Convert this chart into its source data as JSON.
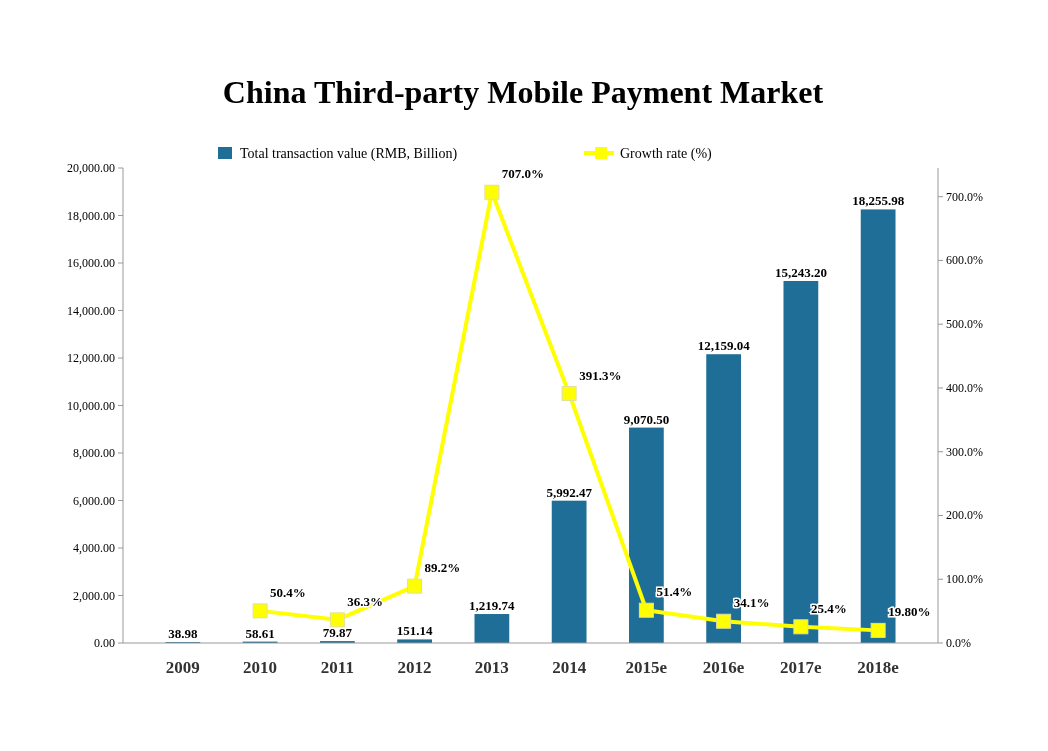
{
  "chart_data": {
    "type": "bar",
    "title": "China Third-party Mobile Payment Market",
    "categories": [
      "2009",
      "2010",
      "2011",
      "2012",
      "2013",
      "2014",
      "2015e",
      "2016e",
      "2017e",
      "2018e"
    ],
    "series": [
      {
        "name": "Total transaction value (RMB, Billion)",
        "color": "#1f6e97",
        "values": [
          38.98,
          58.61,
          79.87,
          151.14,
          1219.74,
          5992.47,
          9070.5,
          12159.04,
          15243.2,
          18255.98
        ],
        "value_labels": [
          "38.98",
          "58.61",
          "79.87",
          "151.14",
          "1,219.74",
          "5,992.47",
          "9,070.50",
          "12,159.04",
          "15,243.20",
          "18,255.98"
        ]
      },
      {
        "name": "Growth rate (%)",
        "type": "line",
        "axis": "y2",
        "color": "#ffff00",
        "marker": "square",
        "values": [
          null,
          50.4,
          36.3,
          89.2,
          707.0,
          391.3,
          51.4,
          34.1,
          25.4,
          19.8
        ],
        "value_labels": [
          null,
          "50.4%",
          "36.3%",
          "89.2%",
          "707.0%",
          "391.3%",
          "51.4%",
          "34.1%",
          "25.4%",
          "19.80%"
        ]
      }
    ],
    "ylim": [
      0,
      20000
    ],
    "yticks": [
      {
        "value": 0,
        "label": "0.00"
      },
      {
        "value": 2000,
        "label": "2,000.00"
      },
      {
        "value": 4000,
        "label": "4,000.00"
      },
      {
        "value": 6000,
        "label": "6,000.00"
      },
      {
        "value": 8000,
        "label": "8,000.00"
      },
      {
        "value": 10000,
        "label": "10,000.00"
      },
      {
        "value": 12000,
        "label": "12,000.00"
      },
      {
        "value": 14000,
        "label": "14,000.00"
      },
      {
        "value": 16000,
        "label": "16,000.00"
      },
      {
        "value": 18000,
        "label": "18,000.00"
      },
      {
        "value": 20000,
        "label": "20,000.00"
      }
    ],
    "y2lim": [
      0,
      745
    ],
    "y2ticks": [
      {
        "value": 0,
        "label": "0.0%"
      },
      {
        "value": 100,
        "label": "100.0%"
      },
      {
        "value": 200,
        "label": "200.0%"
      },
      {
        "value": 300,
        "label": "300.0%"
      },
      {
        "value": 400,
        "label": "400.0%"
      },
      {
        "value": 500,
        "label": "500.0%"
      },
      {
        "value": 600,
        "label": "600.0%"
      },
      {
        "value": 700,
        "label": "700.0%"
      }
    ],
    "legend": "top",
    "grid": false
  }
}
